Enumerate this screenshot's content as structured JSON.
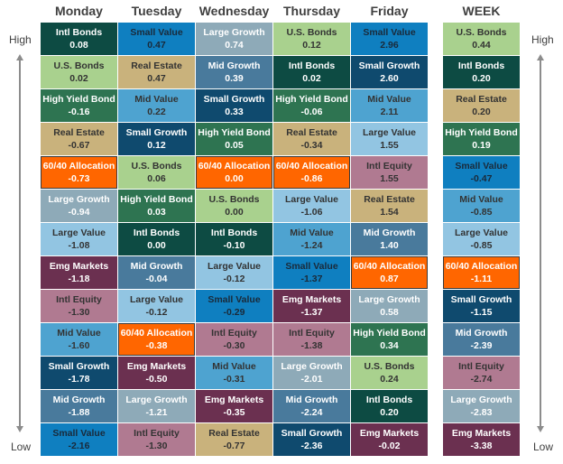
{
  "side_labels": {
    "high": "High",
    "low": "Low"
  },
  "colors": {
    "Intl Bonds": [
      "#0d4b43",
      "#ffffff"
    ],
    "U.S. Bonds": [
      "#a9d18e",
      "#333333"
    ],
    "High Yield Bond": [
      "#2e7451",
      "#ffffff"
    ],
    "Real Estate": [
      "#c9b27c",
      "#333333"
    ],
    "60/40 Allocation": [
      "#ff6600",
      "#ffffff"
    ],
    "Large Growth": [
      "#8eaab8",
      "#ffffff"
    ],
    "Large Value": [
      "#92c5e2",
      "#333333"
    ],
    "Emg Markets": [
      "#6b3050",
      "#ffffff"
    ],
    "Intl Equity": [
      "#b07a91",
      "#333333"
    ],
    "Mid Value": [
      "#4ea3d0",
      "#333333"
    ],
    "Small Growth": [
      "#0f4a6e",
      "#ffffff"
    ],
    "Mid Growth": [
      "#497a9c",
      "#ffffff"
    ],
    "Small Value": [
      "#0f7fc0",
      "#1a2a3a"
    ]
  },
  "columns": [
    {
      "name": "Monday",
      "cells": [
        [
          "Intl Bonds",
          "0.08"
        ],
        [
          "U.S. Bonds",
          "0.02"
        ],
        [
          "High Yield Bond",
          "-0.16"
        ],
        [
          "Real Estate",
          "-0.67"
        ],
        [
          "60/40 Allocation",
          "-0.73"
        ],
        [
          "Large Growth",
          "-0.94"
        ],
        [
          "Large Value",
          "-1.08"
        ],
        [
          "Emg Markets",
          "-1.18"
        ],
        [
          "Intl Equity",
          "-1.30"
        ],
        [
          "Mid Value",
          "-1.60"
        ],
        [
          "Small Growth",
          "-1.78"
        ],
        [
          "Mid Growth",
          "-1.88"
        ],
        [
          "Small Value",
          "-2.16"
        ]
      ]
    },
    {
      "name": "Tuesday",
      "cells": [
        [
          "Small Value",
          "0.47"
        ],
        [
          "Real Estate",
          "0.47"
        ],
        [
          "Mid Value",
          "0.22"
        ],
        [
          "Small Growth",
          "0.12"
        ],
        [
          "U.S. Bonds",
          "0.06"
        ],
        [
          "High Yield Bond",
          "0.03"
        ],
        [
          "Intl Bonds",
          "0.00"
        ],
        [
          "Mid Growth",
          "-0.04"
        ],
        [
          "Large Value",
          "-0.12"
        ],
        [
          "60/40 Allocation",
          "-0.38"
        ],
        [
          "Emg Markets",
          "-0.50"
        ],
        [
          "Large Growth",
          "-1.21"
        ],
        [
          "Intl Equity",
          "-1.30"
        ]
      ]
    },
    {
      "name": "Wednesday",
      "cells": [
        [
          "Large Growth",
          "0.74"
        ],
        [
          "Mid Growth",
          "0.39"
        ],
        [
          "Small Growth",
          "0.33"
        ],
        [
          "High Yield Bond",
          "0.05"
        ],
        [
          "60/40 Allocation",
          "0.00"
        ],
        [
          "U.S. Bonds",
          "0.00"
        ],
        [
          "Intl Bonds",
          "-0.10"
        ],
        [
          "Large Value",
          "-0.12"
        ],
        [
          "Small Value",
          "-0.29"
        ],
        [
          "Intl Equity",
          "-0.30"
        ],
        [
          "Mid Value",
          "-0.31"
        ],
        [
          "Emg Markets",
          "-0.35"
        ],
        [
          "Real Estate",
          "-0.77"
        ]
      ]
    },
    {
      "name": "Thursday",
      "cells": [
        [
          "U.S. Bonds",
          "0.12"
        ],
        [
          "Intl Bonds",
          "0.02"
        ],
        [
          "High Yield Bond",
          "-0.06"
        ],
        [
          "Real Estate",
          "-0.34"
        ],
        [
          "60/40 Allocation",
          "-0.86"
        ],
        [
          "Large Value",
          "-1.06"
        ],
        [
          "Mid Value",
          "-1.24"
        ],
        [
          "Small Value",
          "-1.37"
        ],
        [
          "Emg Markets",
          "-1.37"
        ],
        [
          "Intl Equity",
          "-1.38"
        ],
        [
          "Large Growth",
          "-2.01"
        ],
        [
          "Mid Growth",
          "-2.24"
        ],
        [
          "Small Growth",
          "-2.36"
        ]
      ]
    },
    {
      "name": "Friday",
      "cells": [
        [
          "Small Value",
          "2.96"
        ],
        [
          "Small Growth",
          "2.60"
        ],
        [
          "Mid Value",
          "2.11"
        ],
        [
          "Large Value",
          "1.55"
        ],
        [
          "Intl Equity",
          "1.55"
        ],
        [
          "Real Estate",
          "1.54"
        ],
        [
          "Mid Growth",
          "1.40"
        ],
        [
          "60/40 Allocation",
          "0.87"
        ],
        [
          "Large Growth",
          "0.58"
        ],
        [
          "High Yield Bond",
          "0.34"
        ],
        [
          "U.S. Bonds",
          "0.24"
        ],
        [
          "Intl Bonds",
          "0.20"
        ],
        [
          "Emg Markets",
          "-0.02"
        ]
      ]
    },
    {
      "name": "WEEK",
      "cells": [
        [
          "U.S. Bonds",
          "0.44"
        ],
        [
          "Intl Bonds",
          "0.20"
        ],
        [
          "Real Estate",
          "0.20"
        ],
        [
          "High Yield Bond",
          "0.19"
        ],
        [
          "Small Value",
          "-0.47"
        ],
        [
          "Mid Value",
          "-0.85"
        ],
        [
          "Large Value",
          "-0.85"
        ],
        [
          "60/40 Allocation",
          "-1.11"
        ],
        [
          "Small Growth",
          "-1.15"
        ],
        [
          "Mid Growth",
          "-2.39"
        ],
        [
          "Intl Equity",
          "-2.74"
        ],
        [
          "Large Growth",
          "-2.83"
        ],
        [
          "Emg Markets",
          "-3.38"
        ]
      ]
    }
  ]
}
